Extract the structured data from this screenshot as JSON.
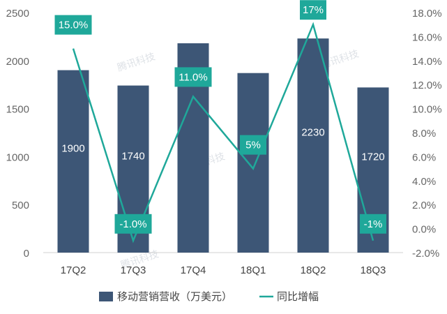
{
  "chart_data": {
    "type": "bar",
    "categories": [
      "17Q2",
      "17Q3",
      "17Q4",
      "18Q1",
      "18Q2",
      "18Q3"
    ],
    "series": [
      {
        "name": "移动营销营收（万美元）",
        "chart_type": "bar",
        "axis": "left",
        "values": [
          1900,
          1740,
          2180,
          1870,
          2230,
          1720
        ],
        "labels": [
          "1900",
          "1740",
          "",
          "1870",
          "2230",
          "1720"
        ],
        "color": "#3d5676"
      },
      {
        "name": "同比增幅",
        "chart_type": "line",
        "axis": "right",
        "values": [
          15.0,
          -1.0,
          11.0,
          5.0,
          17.0,
          -1.0
        ],
        "labels": [
          "15.0%",
          "-1.0%",
          "11.0%",
          "5%",
          "17%",
          "-1%"
        ],
        "color": "#1fa89a"
      }
    ],
    "left_axis": {
      "ylim": [
        0,
        2500
      ],
      "ticks": [
        "0",
        "500",
        "1000",
        "1500",
        "2000",
        "2500"
      ]
    },
    "right_axis": {
      "ylim": [
        -2.0,
        18.0
      ],
      "ticks": [
        "-2.0%",
        "0.0%",
        "2.0%",
        "4.0%",
        "6.0%",
        "8.0%",
        "10.0%",
        "12.0%",
        "14.0%",
        "16.0%",
        "18.0%"
      ]
    },
    "grid": false,
    "legend_position": "bottom",
    "watermark": "腾讯科技"
  }
}
